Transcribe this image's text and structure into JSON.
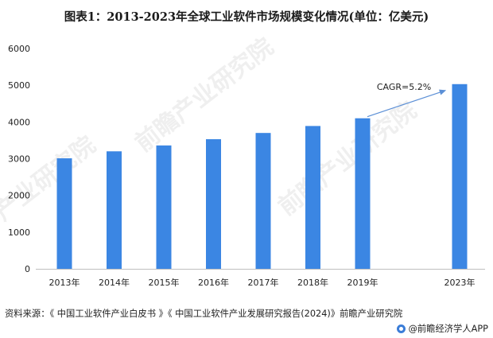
{
  "title": "图表1：2013-2023年全球工业软件市场规模变化情况(单位：亿美元)",
  "chart_data": {
    "type": "bar",
    "categories": [
      "2013年",
      "2014年",
      "2015年",
      "2016年",
      "2017年",
      "2018年",
      "2019年",
      "2023年"
    ],
    "values": [
      3010,
      3200,
      3360,
      3530,
      3700,
      3890,
      4100,
      5030
    ],
    "ylim": [
      0,
      6000
    ],
    "yticks": [
      0,
      1000,
      2000,
      3000,
      4000,
      5000,
      6000
    ],
    "bar_color": "#3b86e3",
    "grid": false,
    "annotation": {
      "text": "CAGR=5.2%",
      "from_category": "2019年",
      "to_category": "2023年",
      "color": "#5b8fd6"
    }
  },
  "source_text": "资料来源：《 中国工业软件产业白皮书 》《 中国工业软件产业发展研究报告(2024)》前瞻产业研究院",
  "brand_text": "@前瞻经济学人APP",
  "watermarks": [
    "前瞻产业研究院",
    "前瞻产业研究院",
    "产业研究院"
  ]
}
